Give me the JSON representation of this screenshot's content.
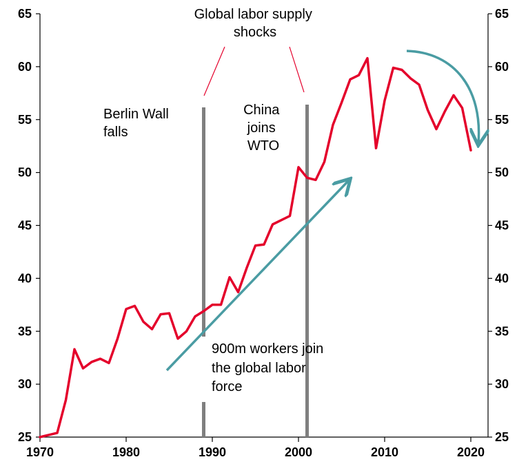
{
  "chart_data": {
    "type": "line",
    "title": "",
    "xlabel": "",
    "ylabel": "",
    "xlim": [
      1970,
      2022
    ],
    "ylim": [
      25,
      65
    ],
    "y_ticks": [
      25,
      30,
      35,
      40,
      45,
      50,
      55,
      60,
      65
    ],
    "x_ticks": [
      1970,
      1980,
      1990,
      2000,
      2010,
      2020
    ],
    "grid": false,
    "series": [
      {
        "color": "#e4002b",
        "x": [
          1970,
          1971,
          1972,
          1973,
          1974,
          1975,
          1976,
          1977,
          1978,
          1979,
          1980,
          1981,
          1982,
          1983,
          1984,
          1985,
          1986,
          1987,
          1988,
          1989,
          1990,
          1991,
          1992,
          1993,
          1994,
          1995,
          1996,
          1997,
          1998,
          1999,
          2000,
          2001,
          2002,
          2003,
          2004,
          2005,
          2006,
          2007,
          2008,
          2009,
          2010,
          2011,
          2012,
          2013,
          2014,
          2015,
          2016,
          2017,
          2018,
          2019,
          2020
        ],
        "y": [
          25.0,
          25.2,
          25.4,
          28.5,
          33.3,
          31.5,
          32.1,
          32.4,
          32.0,
          34.3,
          37.1,
          37.4,
          35.9,
          35.2,
          36.6,
          36.7,
          34.3,
          35.0,
          36.4,
          36.9,
          37.5,
          37.5,
          40.1,
          38.7,
          41.0,
          43.1,
          43.2,
          45.1,
          45.5,
          45.9,
          50.5,
          49.5,
          49.3,
          51.0,
          54.5,
          56.6,
          58.8,
          59.2,
          60.8,
          52.3,
          56.8,
          59.9,
          59.7,
          58.9,
          58.3,
          55.9,
          54.1,
          55.8,
          57.3,
          56.1,
          52.1
        ]
      }
    ],
    "vertical_lines": [
      {
        "x": 1989,
        "color": "#7f7f7f"
      },
      {
        "x": 2001,
        "color": "#7f7f7f"
      }
    ],
    "annotations": {
      "header": [
        "Global labor supply",
        "shocks"
      ],
      "berlin": [
        "Berlin Wall",
        "falls"
      ],
      "china": [
        "China",
        "joins",
        "WTO"
      ],
      "workers": [
        "900m workers join",
        "the global labor",
        "force"
      ]
    },
    "arrow_color": "#4a9ca3"
  }
}
